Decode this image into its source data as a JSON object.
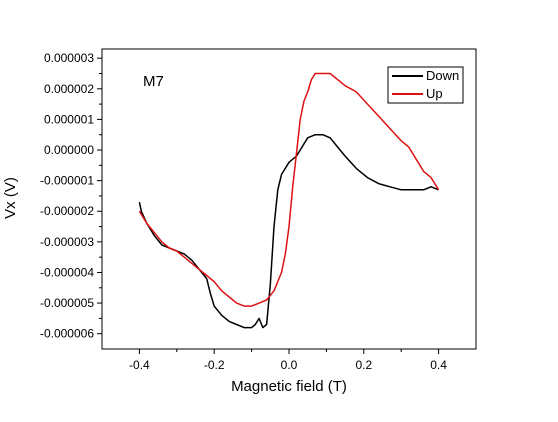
{
  "chart_data": {
    "type": "line",
    "title": "",
    "annotation": "M7",
    "xlabel": "Magnetic field (T)",
    "ylabel": "Vx (V)",
    "xlim": [
      -0.5,
      0.5
    ],
    "ylim": [
      -6.5e-06,
      3.3e-06
    ],
    "x_ticks": [
      -0.4,
      -0.2,
      0.0,
      0.2,
      0.4
    ],
    "x_tick_labels": [
      "-0.4",
      "-0.2",
      "0.0",
      "0.2",
      "0.4"
    ],
    "y_ticks": [
      -6e-06,
      -5e-06,
      -4e-06,
      -3e-06,
      -2e-06,
      -1e-06,
      0,
      1e-06,
      2e-06,
      3e-06
    ],
    "y_tick_labels": [
      "-0.000006",
      "-0.000005",
      "-0.000004",
      "-0.000003",
      "-0.000002",
      "-0.000001",
      "0.000000",
      "0.000001",
      "0.000002",
      "0.000003"
    ],
    "grid": false,
    "legend_position": "top-right",
    "series": [
      {
        "name": "Down",
        "color": "#000000",
        "points": [
          [
            -0.4,
            -1.7e-06
          ],
          [
            -0.395,
            -2e-06
          ],
          [
            -0.38,
            -2.4e-06
          ],
          [
            -0.36,
            -2.8e-06
          ],
          [
            -0.34,
            -3.1e-06
          ],
          [
            -0.32,
            -3.2e-06
          ],
          [
            -0.3,
            -3.3e-06
          ],
          [
            -0.28,
            -3.4e-06
          ],
          [
            -0.26,
            -3.6e-06
          ],
          [
            -0.24,
            -3.9e-06
          ],
          [
            -0.22,
            -4.2e-06
          ],
          [
            -0.21,
            -4.7e-06
          ],
          [
            -0.2,
            -5.1e-06
          ],
          [
            -0.18,
            -5.4e-06
          ],
          [
            -0.16,
            -5.6e-06
          ],
          [
            -0.14,
            -5.7e-06
          ],
          [
            -0.12,
            -5.8e-06
          ],
          [
            -0.1,
            -5.8e-06
          ],
          [
            -0.09,
            -5.7e-06
          ],
          [
            -0.08,
            -5.5e-06
          ],
          [
            -0.07,
            -5.8e-06
          ],
          [
            -0.06,
            -5.7e-06
          ],
          [
            -0.05,
            -4.4e-06
          ],
          [
            -0.04,
            -2.5e-06
          ],
          [
            -0.03,
            -1.3e-06
          ],
          [
            -0.02,
            -8e-07
          ],
          [
            0.0,
            -4e-07
          ],
          [
            0.01,
            -3e-07
          ],
          [
            0.02,
            -2e-07
          ],
          [
            0.03,
            0.0
          ],
          [
            0.05,
            4e-07
          ],
          [
            0.07,
            5e-07
          ],
          [
            0.09,
            5e-07
          ],
          [
            0.11,
            4e-07
          ],
          [
            0.13,
            1e-07
          ],
          [
            0.15,
            -2e-07
          ],
          [
            0.18,
            -6e-07
          ],
          [
            0.21,
            -9e-07
          ],
          [
            0.24,
            -1.1e-06
          ],
          [
            0.27,
            -1.2e-06
          ],
          [
            0.3,
            -1.3e-06
          ],
          [
            0.33,
            -1.3e-06
          ],
          [
            0.36,
            -1.3e-06
          ],
          [
            0.38,
            -1.2e-06
          ],
          [
            0.4,
            -1.3e-06
          ]
        ]
      },
      {
        "name": "Up",
        "color": "#dd1111",
        "points": [
          [
            -0.4,
            -2e-06
          ],
          [
            -0.38,
            -2.4e-06
          ],
          [
            -0.36,
            -2.7e-06
          ],
          [
            -0.34,
            -3e-06
          ],
          [
            -0.32,
            -3.2e-06
          ],
          [
            -0.3,
            -3.3e-06
          ],
          [
            -0.28,
            -3.5e-06
          ],
          [
            -0.26,
            -3.7e-06
          ],
          [
            -0.24,
            -3.9e-06
          ],
          [
            -0.22,
            -4.1e-06
          ],
          [
            -0.2,
            -4.3e-06
          ],
          [
            -0.18,
            -4.6e-06
          ],
          [
            -0.16,
            -4.8e-06
          ],
          [
            -0.14,
            -5e-06
          ],
          [
            -0.12,
            -5.1e-06
          ],
          [
            -0.1,
            -5.1e-06
          ],
          [
            -0.08,
            -5e-06
          ],
          [
            -0.06,
            -4.9e-06
          ],
          [
            -0.04,
            -4.6e-06
          ],
          [
            -0.02,
            -4e-06
          ],
          [
            -0.01,
            -3.4e-06
          ],
          [
            0.0,
            -2.5e-06
          ],
          [
            0.01,
            -1.2e-06
          ],
          [
            0.02,
            -1e-07
          ],
          [
            0.03,
            1e-06
          ],
          [
            0.04,
            1.6e-06
          ],
          [
            0.05,
            1.9e-06
          ],
          [
            0.06,
            2.3e-06
          ],
          [
            0.07,
            2.5e-06
          ],
          [
            0.09,
            2.5e-06
          ],
          [
            0.11,
            2.5e-06
          ],
          [
            0.13,
            2.3e-06
          ],
          [
            0.15,
            2.1e-06
          ],
          [
            0.18,
            1.9e-06
          ],
          [
            0.21,
            1.5e-06
          ],
          [
            0.24,
            1.1e-06
          ],
          [
            0.27,
            7e-07
          ],
          [
            0.3,
            3e-07
          ],
          [
            0.32,
            1e-07
          ],
          [
            0.34,
            -3e-07
          ],
          [
            0.36,
            -7e-07
          ],
          [
            0.38,
            -9e-07
          ],
          [
            0.4,
            -1.3e-06
          ]
        ]
      }
    ]
  }
}
